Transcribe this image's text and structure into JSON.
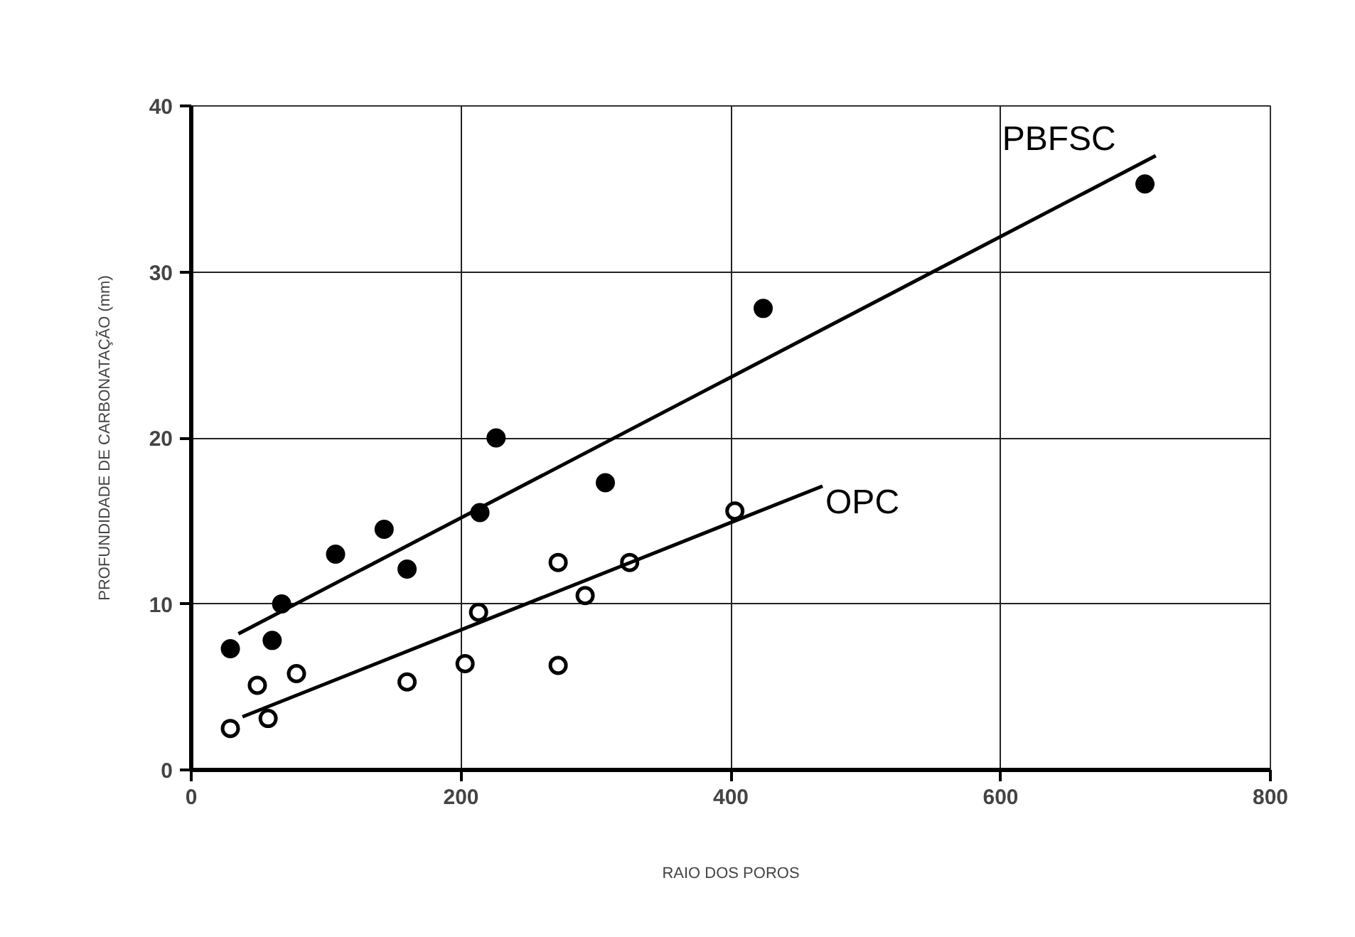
{
  "chart_data": {
    "type": "scatter",
    "xlabel": "RAIO DOS POROS",
    "ylabel": "PROFUNDIDADE DE CARBONATAÇÃO (mm)",
    "xlim": [
      0,
      800
    ],
    "xticks": [
      0,
      200,
      400,
      600,
      800
    ],
    "ylim": [
      0,
      40
    ],
    "yticks": [
      0,
      10,
      20,
      30,
      40
    ],
    "grid": true,
    "series": [
      {
        "marker": "circle",
        "color": "#000000",
        "x": [
          29,
          60,
          67,
          107,
          143,
          160,
          214,
          226,
          307,
          424,
          707
        ],
        "values": [
          7.3,
          7.8,
          10.0,
          13.0,
          14.5,
          12.1,
          15.5,
          20.0,
          17.3,
          27.8,
          35.3
        ]
      },
      {
        "marker": "circle",
        "color": "#ffffff",
        "x": [
          29,
          49,
          57,
          78,
          160,
          203,
          213,
          272,
          272,
          292,
          325,
          403
        ],
        "values": [
          2.5,
          5.1,
          3.1,
          5.8,
          5.3,
          6.4,
          9.5,
          12.5,
          6.3,
          10.5,
          12.5,
          15.6
        ]
      },
      {
        "type": "line",
        "marker": "none",
        "name": "PBFSC",
        "color": "#000000",
        "x": [
          35,
          715
        ],
        "values": [
          8.2,
          37.0
        ]
      },
      {
        "type": "line",
        "marker": "none",
        "name": "OPC",
        "color": "#000000",
        "x": [
          38,
          468
        ],
        "values": [
          3.2,
          17.1
        ]
      }
    ]
  }
}
